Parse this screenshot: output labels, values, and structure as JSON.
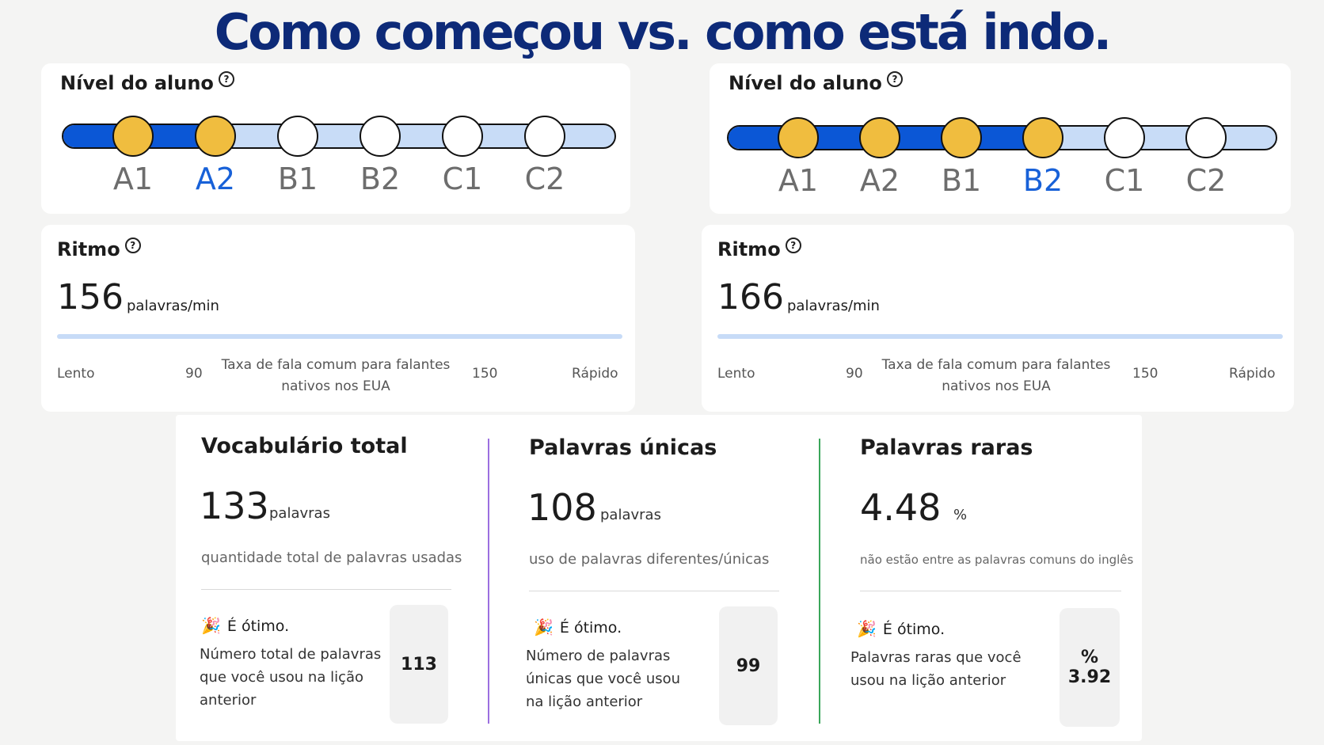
{
  "title": "Como começou vs. como está indo.",
  "panels": [
    {
      "level": {
        "title": "Nível do aluno",
        "levels": [
          "A1",
          "A2",
          "B1",
          "B2",
          "C1",
          "C2"
        ],
        "current": "A2"
      },
      "rhythm": {
        "title": "Ritmo",
        "value": "156",
        "unit": "palavras/min",
        "slow": "Lento",
        "low": "90",
        "common": "Taxa de fala comum para falantes nativos nos EUA",
        "high": "150",
        "fast": "Rápido"
      }
    },
    {
      "level": {
        "title": "Nível do aluno",
        "levels": [
          "A1",
          "A2",
          "B1",
          "B2",
          "C1",
          "C2"
        ],
        "current": "B2"
      },
      "rhythm": {
        "title": "Ritmo",
        "value": "166",
        "unit": "palavras/min",
        "slow": "Lento",
        "low": "90",
        "common": "Taxa de fala comum para falantes nativos nos EUA",
        "high": "150",
        "fast": "Rápido"
      }
    }
  ],
  "stats": [
    {
      "title": "Vocabulário total",
      "value": "133",
      "unit": "palavras",
      "desc": "quantidade total de palavras usadas",
      "great": "É ótimo.",
      "prev_desc": "Número total de palavras que você usou na lição anterior",
      "prev_value": "113",
      "divider_color": "#9b6fe0"
    },
    {
      "title": "Palavras únicas",
      "value": "108",
      "unit": "palavras",
      "desc": "uso de palavras diferentes/únicas",
      "great": "É ótimo.",
      "prev_desc": "Número de palavras únicas que você usou na lição anterior",
      "prev_value": "99",
      "divider_color": "#3aa65a"
    },
    {
      "title": "Palavras raras",
      "value": "4.48",
      "unit": "%",
      "desc": "não estão entre as palavras comuns do inglês",
      "great": "É ótimo.",
      "prev_desc": "Palavras raras que você usou na lição anterior",
      "prev_unit": "%",
      "prev_value": "3.92"
    }
  ],
  "icons": {
    "help": "question-circle-icon",
    "great": "party-popper-icon"
  },
  "colors": {
    "title": "#0d2a78",
    "bar_fill": "#0b57d6",
    "bar_track": "#c8dcf7",
    "dot_on": "#f0bd3f",
    "current_label": "#1861d8"
  }
}
